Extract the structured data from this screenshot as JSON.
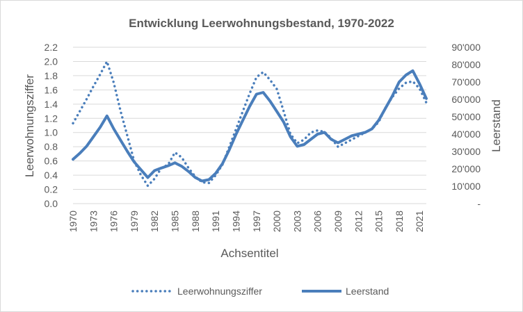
{
  "chart_data": {
    "type": "line",
    "title": "Entwicklung Leerwohnungsbestand, 1970-2022",
    "xlabel": "Achsentitel",
    "ylabel_left": "Leerwohnungsziffer",
    "ylabel_right": "Leerstand",
    "x": [
      1970,
      1971,
      1972,
      1973,
      1974,
      1975,
      1976,
      1977,
      1978,
      1979,
      1980,
      1981,
      1982,
      1983,
      1984,
      1985,
      1986,
      1987,
      1988,
      1989,
      1990,
      1991,
      1992,
      1993,
      1994,
      1995,
      1996,
      1997,
      1998,
      1999,
      2000,
      2001,
      2002,
      2003,
      2004,
      2005,
      2006,
      2007,
      2008,
      2009,
      2010,
      2011,
      2012,
      2013,
      2014,
      2015,
      2016,
      2017,
      2018,
      2019,
      2020,
      2021,
      2022
    ],
    "x_tick_labels": [
      "1970",
      "1973",
      "1976",
      "1979",
      "1982",
      "1985",
      "1988",
      "1991",
      "1994",
      "1997",
      "2000",
      "2003",
      "2006",
      "2009",
      "2012",
      "2015",
      "2018",
      "2021"
    ],
    "y_left_ticks": [
      "0.0",
      "0.2",
      "0.4",
      "0.6",
      "0.8",
      "1.0",
      "1.2",
      "1.4",
      "1.6",
      "1.8",
      "2.0",
      "2.2"
    ],
    "y_right_ticks": [
      "-",
      "10'000",
      "20'000",
      "30'000",
      "40'000",
      "50'000",
      "60'000",
      "70'000",
      "80'000",
      "90'000"
    ],
    "ylim_left": [
      0,
      2.2
    ],
    "ylim_right": [
      0,
      90000
    ],
    "grid": true,
    "legend_position": "bottom",
    "series": [
      {
        "name": "Leerwohnungsziffer",
        "axis": "left",
        "style": "dotted",
        "color": "#4a7ebb",
        "values": [
          1.13,
          1.3,
          1.47,
          1.65,
          1.82,
          2.0,
          1.7,
          1.3,
          0.95,
          0.6,
          0.4,
          0.25,
          0.35,
          0.5,
          0.55,
          0.72,
          0.65,
          0.5,
          0.38,
          0.3,
          0.29,
          0.4,
          0.55,
          0.8,
          1.05,
          1.3,
          1.55,
          1.78,
          1.85,
          1.74,
          1.61,
          1.3,
          0.98,
          0.85,
          0.9,
          1.0,
          1.03,
          1.01,
          0.92,
          0.8,
          0.85,
          0.9,
          0.95,
          1.0,
          1.05,
          1.15,
          1.35,
          1.5,
          1.62,
          1.7,
          1.72,
          1.62,
          1.42
        ]
      },
      {
        "name": "Leerstand",
        "axis": "right",
        "style": "solid",
        "color": "#4a7ebb",
        "values": [
          25500,
          29000,
          33000,
          38500,
          44000,
          50500,
          43000,
          36500,
          30000,
          24000,
          19500,
          15000,
          19000,
          20500,
          21800,
          23500,
          21500,
          18500,
          15000,
          13000,
          13800,
          17500,
          23000,
          31000,
          40000,
          48000,
          56000,
          63000,
          64000,
          59000,
          53000,
          47000,
          38500,
          33000,
          34000,
          37000,
          40000,
          41000,
          37000,
          35000,
          37000,
          39000,
          40000,
          41000,
          43000,
          48000,
          55000,
          62000,
          70000,
          74000,
          76500,
          69000,
          60500
        ]
      }
    ]
  }
}
